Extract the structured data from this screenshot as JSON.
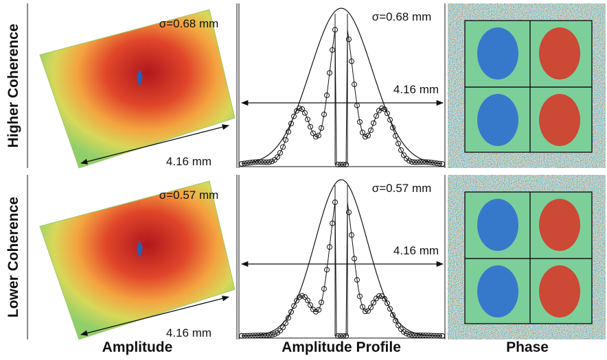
{
  "row_labels": [
    "Higher Coherence",
    "Lower Coherence"
  ],
  "column_labels": [
    "Amplitude",
    "Amplitude Profile",
    "Phase"
  ],
  "rows": [
    {
      "amplitude": {
        "sigma": "σ=0.68 mm",
        "width": "4.16 mm"
      },
      "profile": {
        "sigma": "σ=0.68 mm",
        "width": "4.16 mm"
      }
    },
    {
      "amplitude": {
        "sigma": "σ=0.57 mm",
        "width": "4.16 mm"
      },
      "profile": {
        "sigma": "σ=0.57 mm",
        "width": "4.16 mm"
      }
    }
  ]
}
